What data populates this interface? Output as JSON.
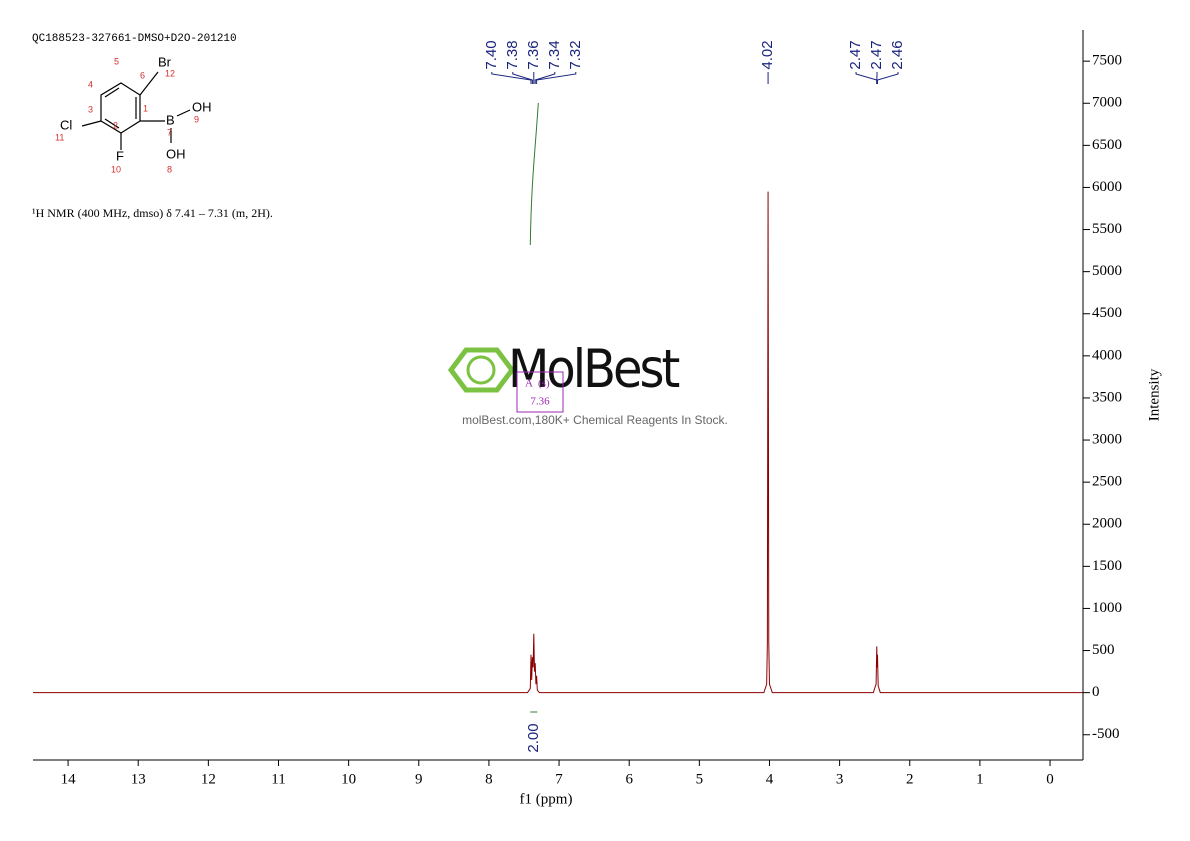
{
  "header": {
    "sample": "QC188523-327661-DMSO+D2O-201210",
    "description": "¹H NMR (400 MHz, dmso) δ 7.41 – 7.31 (m, 2H)."
  },
  "molecule": {
    "atoms": [
      "Br",
      "Cl",
      "F",
      "B",
      "OH",
      "OH"
    ],
    "numbers": [
      "1",
      "2",
      "3",
      "4",
      "5",
      "6",
      "7",
      "8",
      "9",
      "10",
      "11",
      "12"
    ]
  },
  "watermark": {
    "brand": "MolBest",
    "tagline": "molBest.com,180K+ Chemical Reagents In Stock."
  },
  "multiplet": {
    "letter": "A",
    "shape": "(s)",
    "shift": "7.36"
  },
  "chart_data": {
    "type": "line",
    "xlabel": "f1 (ppm)",
    "ylabel": "Intensity",
    "x": [
      14.5,
      7.45,
      7.41,
      7.4,
      7.39,
      7.38,
      7.37,
      7.36,
      7.35,
      7.34,
      7.33,
      7.32,
      7.31,
      7.28,
      4.08,
      4.04,
      4.03,
      4.02,
      4.01,
      4.0,
      3.96,
      2.52,
      2.48,
      2.47,
      2.465,
      2.46,
      2.45,
      2.42,
      0.0,
      -0.47
    ],
    "series": [
      {
        "name": "spectrum",
        "color": "#8b0000",
        "values": [
          0,
          0,
          50,
          450,
          150,
          420,
          300,
          700,
          250,
          350,
          100,
          200,
          30,
          0,
          0,
          100,
          600,
          5950,
          600,
          100,
          0,
          0,
          100,
          550,
          300,
          450,
          80,
          0,
          0,
          0
        ]
      }
    ],
    "xlim": [
      14.5,
      -0.47
    ],
    "xticks": [
      14,
      13,
      12,
      11,
      10,
      9,
      8,
      7,
      6,
      5,
      4,
      3,
      2,
      1,
      0
    ],
    "ylim": [
      -800,
      7870
    ],
    "yticks": [
      -500,
      0,
      500,
      1000,
      1500,
      2000,
      2500,
      3000,
      3500,
      4000,
      4500,
      5000,
      5500,
      6000,
      6500,
      7000,
      7500
    ],
    "peak_groups": [
      [
        "7.40",
        "7.38",
        "7.36",
        "7.34",
        "7.32"
      ],
      [
        "4.02"
      ],
      [
        "2.47",
        "2.47",
        "2.46"
      ]
    ],
    "integrals": [
      {
        "from": 7.41,
        "to": 7.31,
        "label": "2.00",
        "color": "#2e7d32"
      }
    ]
  }
}
